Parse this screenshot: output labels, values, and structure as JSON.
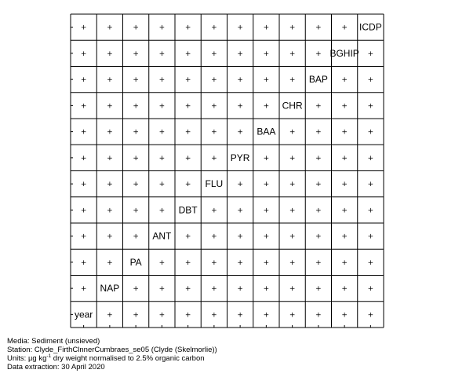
{
  "chart_data": {
    "type": "scatter-matrix",
    "variables": [
      "year",
      "NAP",
      "PA",
      "ANT",
      "DBT",
      "FLU",
      "PYR",
      "BAA",
      "CHR",
      "BAP",
      "BGHIP",
      "ICDP"
    ],
    "diagonal_labels": [
      "year",
      "NAP",
      "PA",
      "ANT",
      "DBT",
      "FLU",
      "PYR",
      "BAA",
      "CHR",
      "BAP",
      "BGHIP",
      "ICDP"
    ],
    "off_diagonal_marker": "+",
    "points_per_panel": 1
  },
  "caption": {
    "media": "Media: Sediment (unsieved)",
    "station": "Station: Clyde_FirthClnnerCumbraes_se05 (Clyde (Skelmorlie))",
    "units_prefix": "Units: ",
    "units_unit": "µg kg",
    "units_exponent": "-1",
    "units_suffix": " dry weight normalised to 2.5% organic carbon",
    "extraction": "Data extraction: 30 April 2020"
  }
}
